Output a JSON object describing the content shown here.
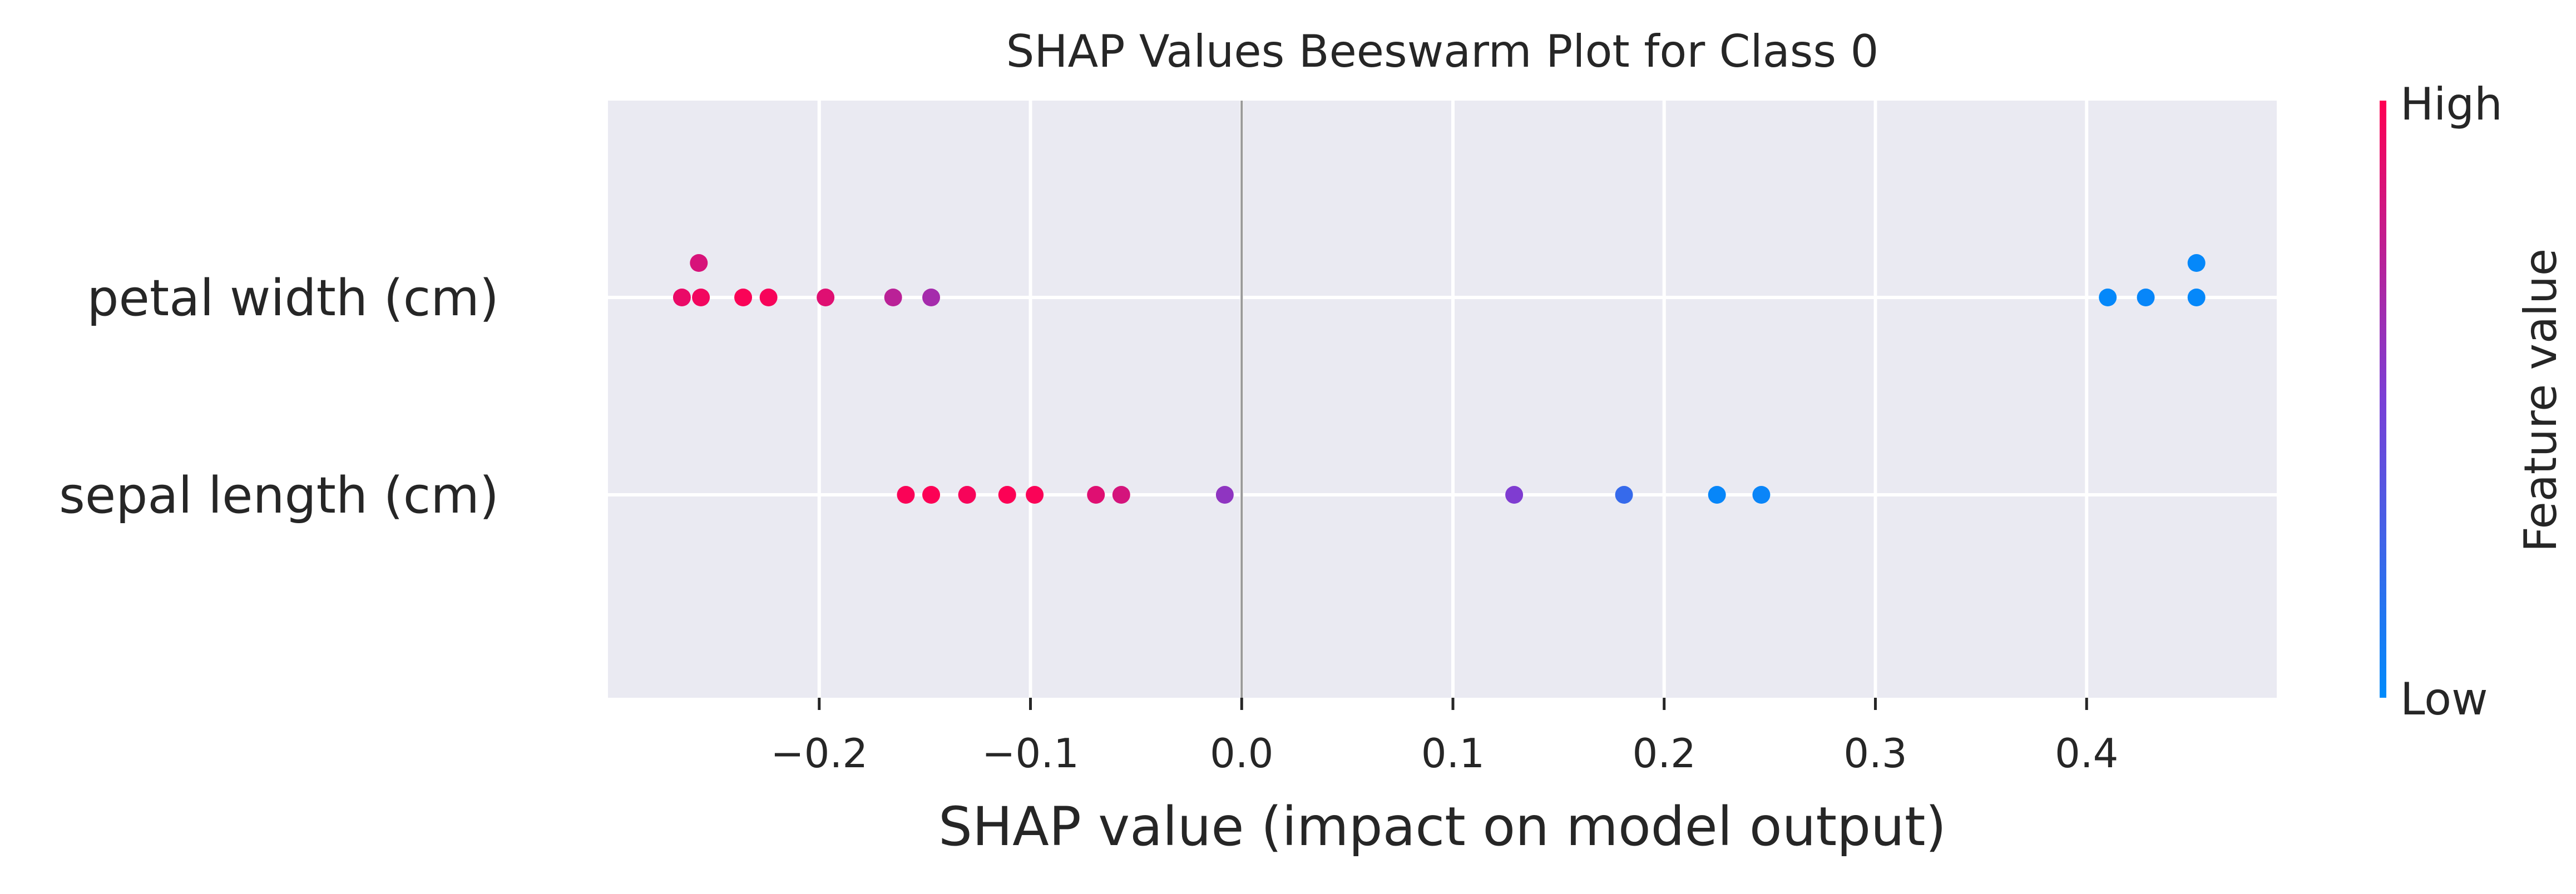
{
  "chart_data": {
    "type": "scatter",
    "subtype": "beeswarm",
    "title": "SHAP Values Beeswarm Plot for Class 0",
    "xlabel": "SHAP value (impact on model output)",
    "ylabel": "",
    "xlim": [
      -0.3,
      0.49
    ],
    "x_ticks": [
      -0.2,
      -0.1,
      0.0,
      0.1,
      0.2,
      0.3,
      0.4
    ],
    "x_tick_labels": [
      "−0.2",
      "−0.1",
      "0.0",
      "0.1",
      "0.2",
      "0.3",
      "0.4"
    ],
    "grid": true,
    "features": [
      "petal width (cm)",
      "sepal length (cm)"
    ],
    "colorbar": {
      "label": "Feature value",
      "high_label": "High",
      "low_label": "Low",
      "high_color": "#ff0052",
      "low_color": "#008bfb"
    },
    "colors": {
      "background": "#eaeaf2",
      "grid": "#ffffff",
      "zero_line": "#999999"
    },
    "series": [
      {
        "feature": "petal width (cm)",
        "points": [
          {
            "x": -0.257,
            "level": 1,
            "value": 0.85
          },
          {
            "x": -0.265,
            "level": 0,
            "value": 0.92
          },
          {
            "x": -0.256,
            "level": 0,
            "value": 0.95
          },
          {
            "x": -0.236,
            "level": 0,
            "value": 0.98
          },
          {
            "x": -0.224,
            "level": 0,
            "value": 0.97
          },
          {
            "x": -0.197,
            "level": 0,
            "value": 0.88
          },
          {
            "x": -0.165,
            "level": 0,
            "value": 0.74
          },
          {
            "x": -0.147,
            "level": 0,
            "value": 0.66
          },
          {
            "x": 0.41,
            "level": 0,
            "value": 0.02
          },
          {
            "x": 0.428,
            "level": 0,
            "value": 0.03
          },
          {
            "x": 0.452,
            "level": 0,
            "value": 0.02
          },
          {
            "x": 0.452,
            "level": 1,
            "value": 0.02
          }
        ]
      },
      {
        "feature": "sepal length (cm)",
        "points": [
          {
            "x": -0.159,
            "level": 0,
            "value": 0.98
          },
          {
            "x": -0.147,
            "level": 0,
            "value": 0.99
          },
          {
            "x": -0.13,
            "level": 0,
            "value": 0.97
          },
          {
            "x": -0.111,
            "level": 0,
            "value": 0.99
          },
          {
            "x": -0.098,
            "level": 0,
            "value": 0.98
          },
          {
            "x": -0.069,
            "level": 0,
            "value": 0.88
          },
          {
            "x": -0.057,
            "level": 0,
            "value": 0.84
          },
          {
            "x": -0.008,
            "level": 0,
            "value": 0.58
          },
          {
            "x": 0.129,
            "level": 0,
            "value": 0.52
          },
          {
            "x": 0.181,
            "level": 0,
            "value": 0.22
          },
          {
            "x": 0.225,
            "level": 0,
            "value": 0.03
          },
          {
            "x": 0.246,
            "level": 0,
            "value": 0.04
          }
        ]
      }
    ]
  }
}
